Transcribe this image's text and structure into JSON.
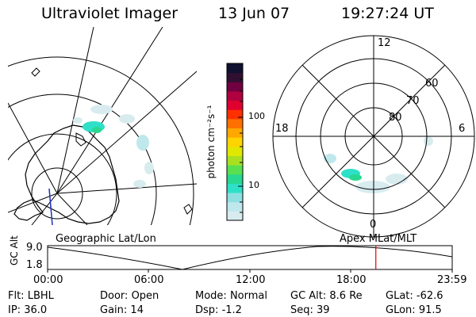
{
  "header": {
    "instrument": "Ultraviolet Imager",
    "date": "13 Jun 07",
    "time": "19:27:24 UT"
  },
  "colorbar": {
    "unit_label": "photon cm⁻²s⁻¹",
    "ticks": [
      "100",
      "10"
    ],
    "colors": [
      "#d8ecef",
      "#bfe8ec",
      "#8ee0e0",
      "#2ee0c8",
      "#28d890",
      "#58e050",
      "#a8e020",
      "#e0e800",
      "#ffd400",
      "#ffa800",
      "#ff7000",
      "#ff3000",
      "#e00030",
      "#b00040",
      "#700040",
      "#301030",
      "#101030"
    ]
  },
  "geo_map": {
    "label": "Geographic Lat/Lon"
  },
  "polar_map": {
    "label": "Apex MLat/MLT",
    "mlt_labels": {
      "top": "12",
      "left": "18",
      "right": "6",
      "bottom": "0"
    },
    "lat_labels": [
      "60",
      "70",
      "80"
    ]
  },
  "altitude_plot": {
    "ylabel": "GC Alt",
    "yticks": [
      "9.0",
      "1.8"
    ],
    "xticks": [
      "00:00",
      "06:00",
      "12:00",
      "18:00",
      "23:59"
    ],
    "marker_time": "19:27:24",
    "marker_color": "#e00000"
  },
  "status": {
    "row1": [
      {
        "key": "Flt:",
        "value": "LBHL"
      },
      {
        "key": "Door:",
        "value": "Open"
      },
      {
        "key": "Mode:",
        "value": "Normal"
      },
      {
        "key": "GC Alt:",
        "value": "8.6 Re"
      },
      {
        "key": "GLat:",
        "value": "-62.6"
      }
    ],
    "row2": [
      {
        "key": "IP:",
        "value": "36.0"
      },
      {
        "key": "Gain:",
        "value": "14"
      },
      {
        "key": "Dsp:",
        "value": "-1.2"
      },
      {
        "key": "Seq:",
        "value": "39"
      },
      {
        "key": "GLon:",
        "value": "91.5"
      }
    ]
  }
}
